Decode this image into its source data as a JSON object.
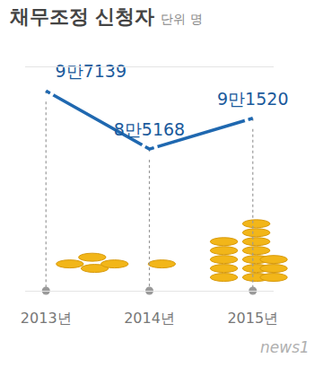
{
  "chart_data": {
    "type": "line",
    "title": "채무조정 신청자",
    "subtitle": "단위 명",
    "categories": [
      "2013년",
      "2014년",
      "2015년"
    ],
    "values": [
      97139,
      85168,
      91520
    ],
    "value_labels": [
      "9만7139",
      "8만5168",
      "9만1520"
    ],
    "color": "#1f68b0",
    "ylim": [
      56000,
      102000
    ],
    "yticks": [],
    "grid": false,
    "data_labels": true,
    "tick_labels": "x",
    "marker": "open-circle",
    "annotations": [
      "news1"
    ]
  }
}
